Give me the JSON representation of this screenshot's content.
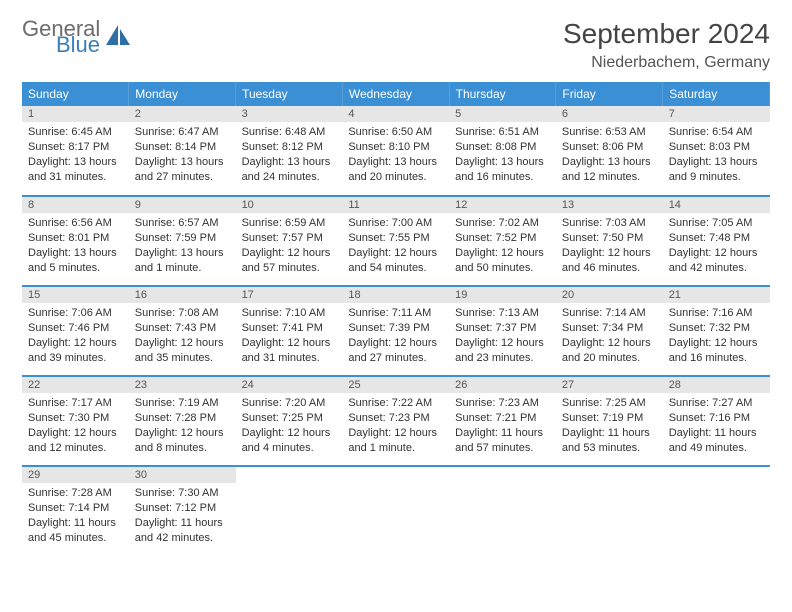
{
  "brand": {
    "word1": "General",
    "word2": "Blue"
  },
  "colors": {
    "header_bg": "#3b8fd4",
    "header_text": "#ffffff",
    "daynum_bg": "#e6e6e6",
    "border": "#3b8fd4",
    "brand_gray": "#6b6b6b",
    "brand_blue": "#3b7fb8"
  },
  "title": "September 2024",
  "location": "Niederbachem, Germany",
  "dow": [
    "Sunday",
    "Monday",
    "Tuesday",
    "Wednesday",
    "Thursday",
    "Friday",
    "Saturday"
  ],
  "cells": [
    {
      "n": "1",
      "sr": "6:45 AM",
      "ss": "8:17 PM",
      "dl": "13 hours and 31 minutes."
    },
    {
      "n": "2",
      "sr": "6:47 AM",
      "ss": "8:14 PM",
      "dl": "13 hours and 27 minutes."
    },
    {
      "n": "3",
      "sr": "6:48 AM",
      "ss": "8:12 PM",
      "dl": "13 hours and 24 minutes."
    },
    {
      "n": "4",
      "sr": "6:50 AM",
      "ss": "8:10 PM",
      "dl": "13 hours and 20 minutes."
    },
    {
      "n": "5",
      "sr": "6:51 AM",
      "ss": "8:08 PM",
      "dl": "13 hours and 16 minutes."
    },
    {
      "n": "6",
      "sr": "6:53 AM",
      "ss": "8:06 PM",
      "dl": "13 hours and 12 minutes."
    },
    {
      "n": "7",
      "sr": "6:54 AM",
      "ss": "8:03 PM",
      "dl": "13 hours and 9 minutes."
    },
    {
      "n": "8",
      "sr": "6:56 AM",
      "ss": "8:01 PM",
      "dl": "13 hours and 5 minutes."
    },
    {
      "n": "9",
      "sr": "6:57 AM",
      "ss": "7:59 PM",
      "dl": "13 hours and 1 minute."
    },
    {
      "n": "10",
      "sr": "6:59 AM",
      "ss": "7:57 PM",
      "dl": "12 hours and 57 minutes."
    },
    {
      "n": "11",
      "sr": "7:00 AM",
      "ss": "7:55 PM",
      "dl": "12 hours and 54 minutes."
    },
    {
      "n": "12",
      "sr": "7:02 AM",
      "ss": "7:52 PM",
      "dl": "12 hours and 50 minutes."
    },
    {
      "n": "13",
      "sr": "7:03 AM",
      "ss": "7:50 PM",
      "dl": "12 hours and 46 minutes."
    },
    {
      "n": "14",
      "sr": "7:05 AM",
      "ss": "7:48 PM",
      "dl": "12 hours and 42 minutes."
    },
    {
      "n": "15",
      "sr": "7:06 AM",
      "ss": "7:46 PM",
      "dl": "12 hours and 39 minutes."
    },
    {
      "n": "16",
      "sr": "7:08 AM",
      "ss": "7:43 PM",
      "dl": "12 hours and 35 minutes."
    },
    {
      "n": "17",
      "sr": "7:10 AM",
      "ss": "7:41 PM",
      "dl": "12 hours and 31 minutes."
    },
    {
      "n": "18",
      "sr": "7:11 AM",
      "ss": "7:39 PM",
      "dl": "12 hours and 27 minutes."
    },
    {
      "n": "19",
      "sr": "7:13 AM",
      "ss": "7:37 PM",
      "dl": "12 hours and 23 minutes."
    },
    {
      "n": "20",
      "sr": "7:14 AM",
      "ss": "7:34 PM",
      "dl": "12 hours and 20 minutes."
    },
    {
      "n": "21",
      "sr": "7:16 AM",
      "ss": "7:32 PM",
      "dl": "12 hours and 16 minutes."
    },
    {
      "n": "22",
      "sr": "7:17 AM",
      "ss": "7:30 PM",
      "dl": "12 hours and 12 minutes."
    },
    {
      "n": "23",
      "sr": "7:19 AM",
      "ss": "7:28 PM",
      "dl": "12 hours and 8 minutes."
    },
    {
      "n": "24",
      "sr": "7:20 AM",
      "ss": "7:25 PM",
      "dl": "12 hours and 4 minutes."
    },
    {
      "n": "25",
      "sr": "7:22 AM",
      "ss": "7:23 PM",
      "dl": "12 hours and 1 minute."
    },
    {
      "n": "26",
      "sr": "7:23 AM",
      "ss": "7:21 PM",
      "dl": "11 hours and 57 minutes."
    },
    {
      "n": "27",
      "sr": "7:25 AM",
      "ss": "7:19 PM",
      "dl": "11 hours and 53 minutes."
    },
    {
      "n": "28",
      "sr": "7:27 AM",
      "ss": "7:16 PM",
      "dl": "11 hours and 49 minutes."
    },
    {
      "n": "29",
      "sr": "7:28 AM",
      "ss": "7:14 PM",
      "dl": "11 hours and 45 minutes."
    },
    {
      "n": "30",
      "sr": "7:30 AM",
      "ss": "7:12 PM",
      "dl": "11 hours and 42 minutes."
    }
  ],
  "labels": {
    "sunrise": "Sunrise:",
    "sunset": "Sunset:",
    "daylight": "Daylight:"
  },
  "grid": {
    "cols": 7,
    "rows": 5,
    "start_offset": 0
  }
}
